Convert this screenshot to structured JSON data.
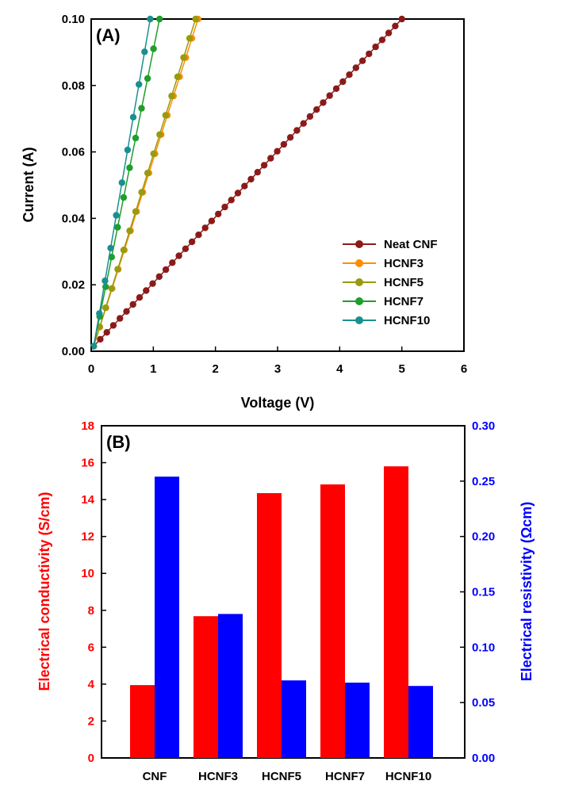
{
  "chart_data": [
    {
      "panel": "(A)",
      "type": "line",
      "xlabel": "Voltage (V)",
      "ylabel": "Current (A)",
      "xlim": [
        0,
        6
      ],
      "ylim": [
        0,
        0.1
      ],
      "xticks": [
        "0",
        "1",
        "2",
        "3",
        "4",
        "5",
        "6"
      ],
      "yticks": [
        "0.00",
        "0.02",
        "0.04",
        "0.06",
        "0.08",
        "0.10"
      ],
      "legend_position": "bottom-right",
      "series": [
        {
          "name": "Neat CNF",
          "color": "#8b1a1a",
          "v_end": 5.0,
          "i_end": 0.1,
          "points": 48
        },
        {
          "name": "HCNF3",
          "color": "#ff8c00",
          "v_end": 1.72,
          "i_end": 0.1,
          "points": 18
        },
        {
          "name": "HCNF5",
          "color": "#9a9a10",
          "v_end": 1.68,
          "i_end": 0.1,
          "points": 18
        },
        {
          "name": "HCNF7",
          "color": "#1e9e2a",
          "v_end": 1.1,
          "i_end": 0.1,
          "points": 12
        },
        {
          "name": "HCNF10",
          "color": "#1a8f8f",
          "v_end": 0.95,
          "i_end": 0.1,
          "points": 11
        }
      ]
    },
    {
      "panel": "(B)",
      "type": "bar",
      "categories": [
        "CNF",
        "HCNF3",
        "HCNF5",
        "HCNF7",
        "HCNF10"
      ],
      "series": [
        {
          "name": "Electrical conductivity",
          "axis": "left",
          "color": "#ff0000",
          "values": [
            3.95,
            7.68,
            14.35,
            14.82,
            15.8
          ]
        },
        {
          "name": "Electrical resistivity",
          "axis": "right",
          "color": "#0000ff",
          "values": [
            0.254,
            0.13,
            0.07,
            0.068,
            0.065
          ]
        }
      ],
      "ylabel_left": "Electrical conductivity (S/cm)",
      "ylabel_right": "Electrical resistivity (Ωcm)",
      "ylim_left": [
        0,
        18
      ],
      "ylim_right": [
        0,
        0.3
      ],
      "yticks_left": [
        "0",
        "2",
        "4",
        "6",
        "8",
        "10",
        "12",
        "14",
        "16",
        "18"
      ],
      "yticks_right": [
        "0.00",
        "0.05",
        "0.10",
        "0.15",
        "0.20",
        "0.25",
        "0.30"
      ],
      "left_axis_color": "#ff0000",
      "right_axis_color": "#0000ff"
    }
  ]
}
